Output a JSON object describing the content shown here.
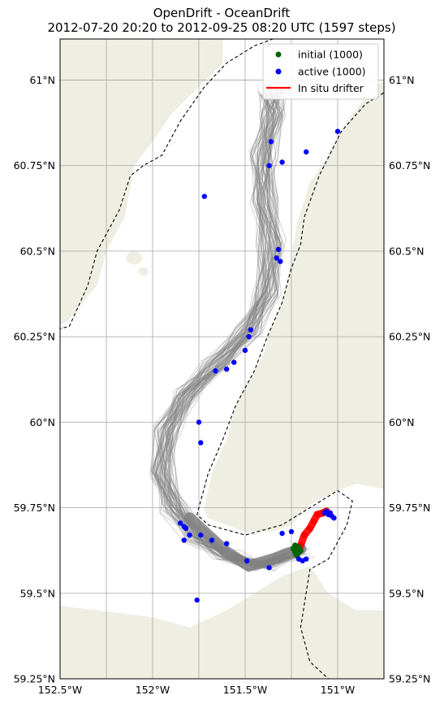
{
  "chart_data": {
    "type": "scatter",
    "title": "OpenDrift - OceanDrift",
    "subtitle": "2012-07-20 20:20 to 2012-09-25 08:20 UTC (1597 steps)",
    "xlim": [
      -152.5,
      -150.75
    ],
    "ylim": [
      59.25,
      61.12
    ],
    "x_ticks": [
      -152.5,
      -152.25,
      -152,
      -151.75,
      -151.5,
      -151.25,
      -151
    ],
    "x_tick_labels": [
      "152.5°W",
      "",
      "152°W",
      "",
      "151.5°W",
      "",
      "151°W"
    ],
    "y_ticks": [
      59.25,
      59.5,
      59.75,
      60,
      60.25,
      60.5,
      60.75,
      61
    ],
    "y_tick_labels": [
      "59.25°N",
      "59.5°N",
      "59.75°N",
      "60°N",
      "60.25°N",
      "60.5°N",
      "60.75°N",
      "61°N"
    ],
    "grid": true,
    "legend_position": "top-right",
    "legend": [
      {
        "label": "initial (1000)",
        "marker": "dot",
        "color": "#006400"
      },
      {
        "label": "active (1000)",
        "marker": "dot",
        "color": "#0000ff"
      },
      {
        "label": "In situ drifter",
        "marker": "line",
        "color": "#ff0000"
      }
    ],
    "colors": {
      "land": "#eeeee2",
      "sea": "#ffffff",
      "trajectory": "#808080",
      "initial": "#006400",
      "active": "#0000ff",
      "drifter": "#ff0000",
      "grid": "#b0b0b0"
    },
    "series": [
      {
        "name": "initial (1000)",
        "type": "scatter",
        "points": [
          [
            -151.24,
            59.63
          ],
          [
            -151.23,
            59.62
          ],
          [
            -151.22,
            59.63
          ],
          [
            -151.21,
            59.62
          ],
          [
            -151.22,
            59.61
          ],
          [
            -151.23,
            59.64
          ],
          [
            -151.21,
            59.635
          ],
          [
            -151.2,
            59.625
          ],
          [
            -151.225,
            59.615
          ],
          [
            -151.215,
            59.63
          ]
        ]
      },
      {
        "name": "active (1000)",
        "type": "scatter",
        "points": [
          [
            -151.0,
            60.85
          ],
          [
            -151.36,
            60.82
          ],
          [
            -151.17,
            60.79
          ],
          [
            -151.3,
            60.76
          ],
          [
            -151.37,
            60.75
          ],
          [
            -151.72,
            60.66
          ],
          [
            -151.32,
            60.505
          ],
          [
            -151.33,
            60.48
          ],
          [
            -151.31,
            60.47
          ],
          [
            -151.47,
            60.27
          ],
          [
            -151.48,
            60.25
          ],
          [
            -151.5,
            60.21
          ],
          [
            -151.56,
            60.175
          ],
          [
            -151.6,
            60.155
          ],
          [
            -151.66,
            60.15
          ],
          [
            -151.75,
            60.0
          ],
          [
            -151.74,
            59.94
          ],
          [
            -151.85,
            59.705
          ],
          [
            -151.83,
            59.695
          ],
          [
            -151.82,
            59.69
          ],
          [
            -151.8,
            59.67
          ],
          [
            -151.83,
            59.655
          ],
          [
            -151.74,
            59.67
          ],
          [
            -151.68,
            59.655
          ],
          [
            -151.6,
            59.645
          ],
          [
            -151.49,
            59.595
          ],
          [
            -151.37,
            59.575
          ],
          [
            -151.3,
            59.675
          ],
          [
            -151.25,
            59.68
          ],
          [
            -151.21,
            59.6
          ],
          [
            -151.19,
            59.595
          ],
          [
            -151.17,
            59.6
          ],
          [
            -151.76,
            59.48
          ],
          [
            -151.06,
            59.74
          ],
          [
            -151.05,
            59.73
          ],
          [
            -151.03,
            59.725
          ],
          [
            -151.02,
            59.72
          ],
          [
            -151.04,
            59.735
          ],
          [
            -151.07,
            59.735
          ]
        ]
      },
      {
        "name": "In situ drifter",
        "type": "line",
        "points": [
          [
            -151.22,
            59.62
          ],
          [
            -151.2,
            59.64
          ],
          [
            -151.18,
            59.67
          ],
          [
            -151.15,
            59.69
          ],
          [
            -151.13,
            59.71
          ],
          [
            -151.11,
            59.73
          ],
          [
            -151.08,
            59.735
          ],
          [
            -151.06,
            59.74
          ]
        ]
      },
      {
        "name": "trajectories",
        "type": "line-bundle",
        "points": [
          [
            -151.22,
            59.62
          ],
          [
            -151.42,
            59.58
          ],
          [
            -151.6,
            59.61
          ],
          [
            -151.75,
            59.66
          ],
          [
            -151.88,
            59.75
          ],
          [
            -151.95,
            59.85
          ],
          [
            -151.92,
            59.98
          ],
          [
            -151.82,
            60.08
          ],
          [
            -151.65,
            60.17
          ],
          [
            -151.48,
            60.27
          ],
          [
            -151.38,
            60.38
          ],
          [
            -151.36,
            60.52
          ],
          [
            -151.4,
            60.65
          ],
          [
            -151.4,
            60.78
          ],
          [
            -151.35,
            60.9
          ],
          [
            -151.35,
            60.97
          ]
        ]
      }
    ]
  }
}
